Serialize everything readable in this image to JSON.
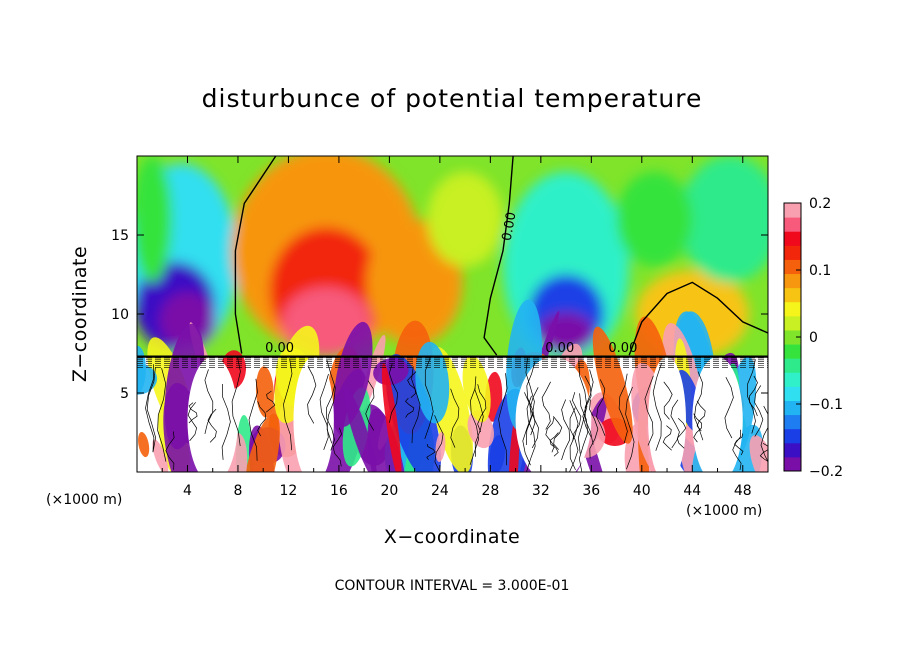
{
  "title": "disturbunce of potential temperature",
  "contour_note": "CONTOUR INTERVAL = 3.000E-01",
  "chart_data": {
    "type": "heatmap",
    "title": "disturbunce of potential temperature",
    "xlabel": "X−coordinate",
    "ylabel": "Z−coordinate",
    "x_unit_label": "(×1000 m)",
    "x_unit_label_right": "(×1000 m)",
    "xlim": [
      0,
      50
    ],
    "ylim": [
      0,
      20
    ],
    "x_ticks": [
      4,
      8,
      12,
      16,
      20,
      24,
      28,
      32,
      36,
      40,
      44,
      48
    ],
    "y_ticks": [
      5,
      10,
      15
    ],
    "x_tick_labels": [
      "4",
      "8",
      "12",
      "16",
      "20",
      "24",
      "28",
      "32",
      "36",
      "40",
      "44",
      "48"
    ],
    "y_tick_labels": [
      "5",
      "10",
      "15"
    ],
    "colorbar": {
      "range": [
        -0.2,
        0.2
      ],
      "ticks": [
        -0.2,
        -0.1,
        0,
        0.1,
        0.2
      ],
      "tick_labels": [
        "−0.2",
        "−0.1",
        "0",
        "0.1",
        "0.2"
      ],
      "colors": [
        "#7a0fa8",
        "#3b0fc4",
        "#1a3fe6",
        "#1e7df0",
        "#22b4f2",
        "#30dff0",
        "#2ff0c8",
        "#2fea8a",
        "#36e33c",
        "#7fe42a",
        "#c8f023",
        "#f5f51c",
        "#f7c414",
        "#f7960f",
        "#f5600c",
        "#f2260a",
        "#f0081d",
        "#f75a7a",
        "#f9a0b0"
      ]
    },
    "contour_interval": 0.3,
    "contour_labels": [
      "0.00"
    ],
    "interface_z": 7.3,
    "upper_field": {
      "description_values": [
        {
          "x": 1.5,
          "z": 10.5,
          "value": -0.18
        },
        {
          "x": 5.0,
          "z": 10.0,
          "value": -0.2
        },
        {
          "x": 14.0,
          "z": 10.5,
          "value": 0.15
        },
        {
          "x": 16.0,
          "z": 16.0,
          "value": 0.1
        },
        {
          "x": 22.0,
          "z": 12.0,
          "value": 0.08
        },
        {
          "x": 27.0,
          "z": 16.0,
          "value": 0.02
        },
        {
          "x": 34.0,
          "z": 10.0,
          "value": -0.2
        },
        {
          "x": 34.0,
          "z": 16.0,
          "value": -0.08
        },
        {
          "x": 44.0,
          "z": 10.0,
          "value": 0.07
        },
        {
          "x": 47.0,
          "z": 16.0,
          "value": -0.05
        }
      ]
    }
  }
}
